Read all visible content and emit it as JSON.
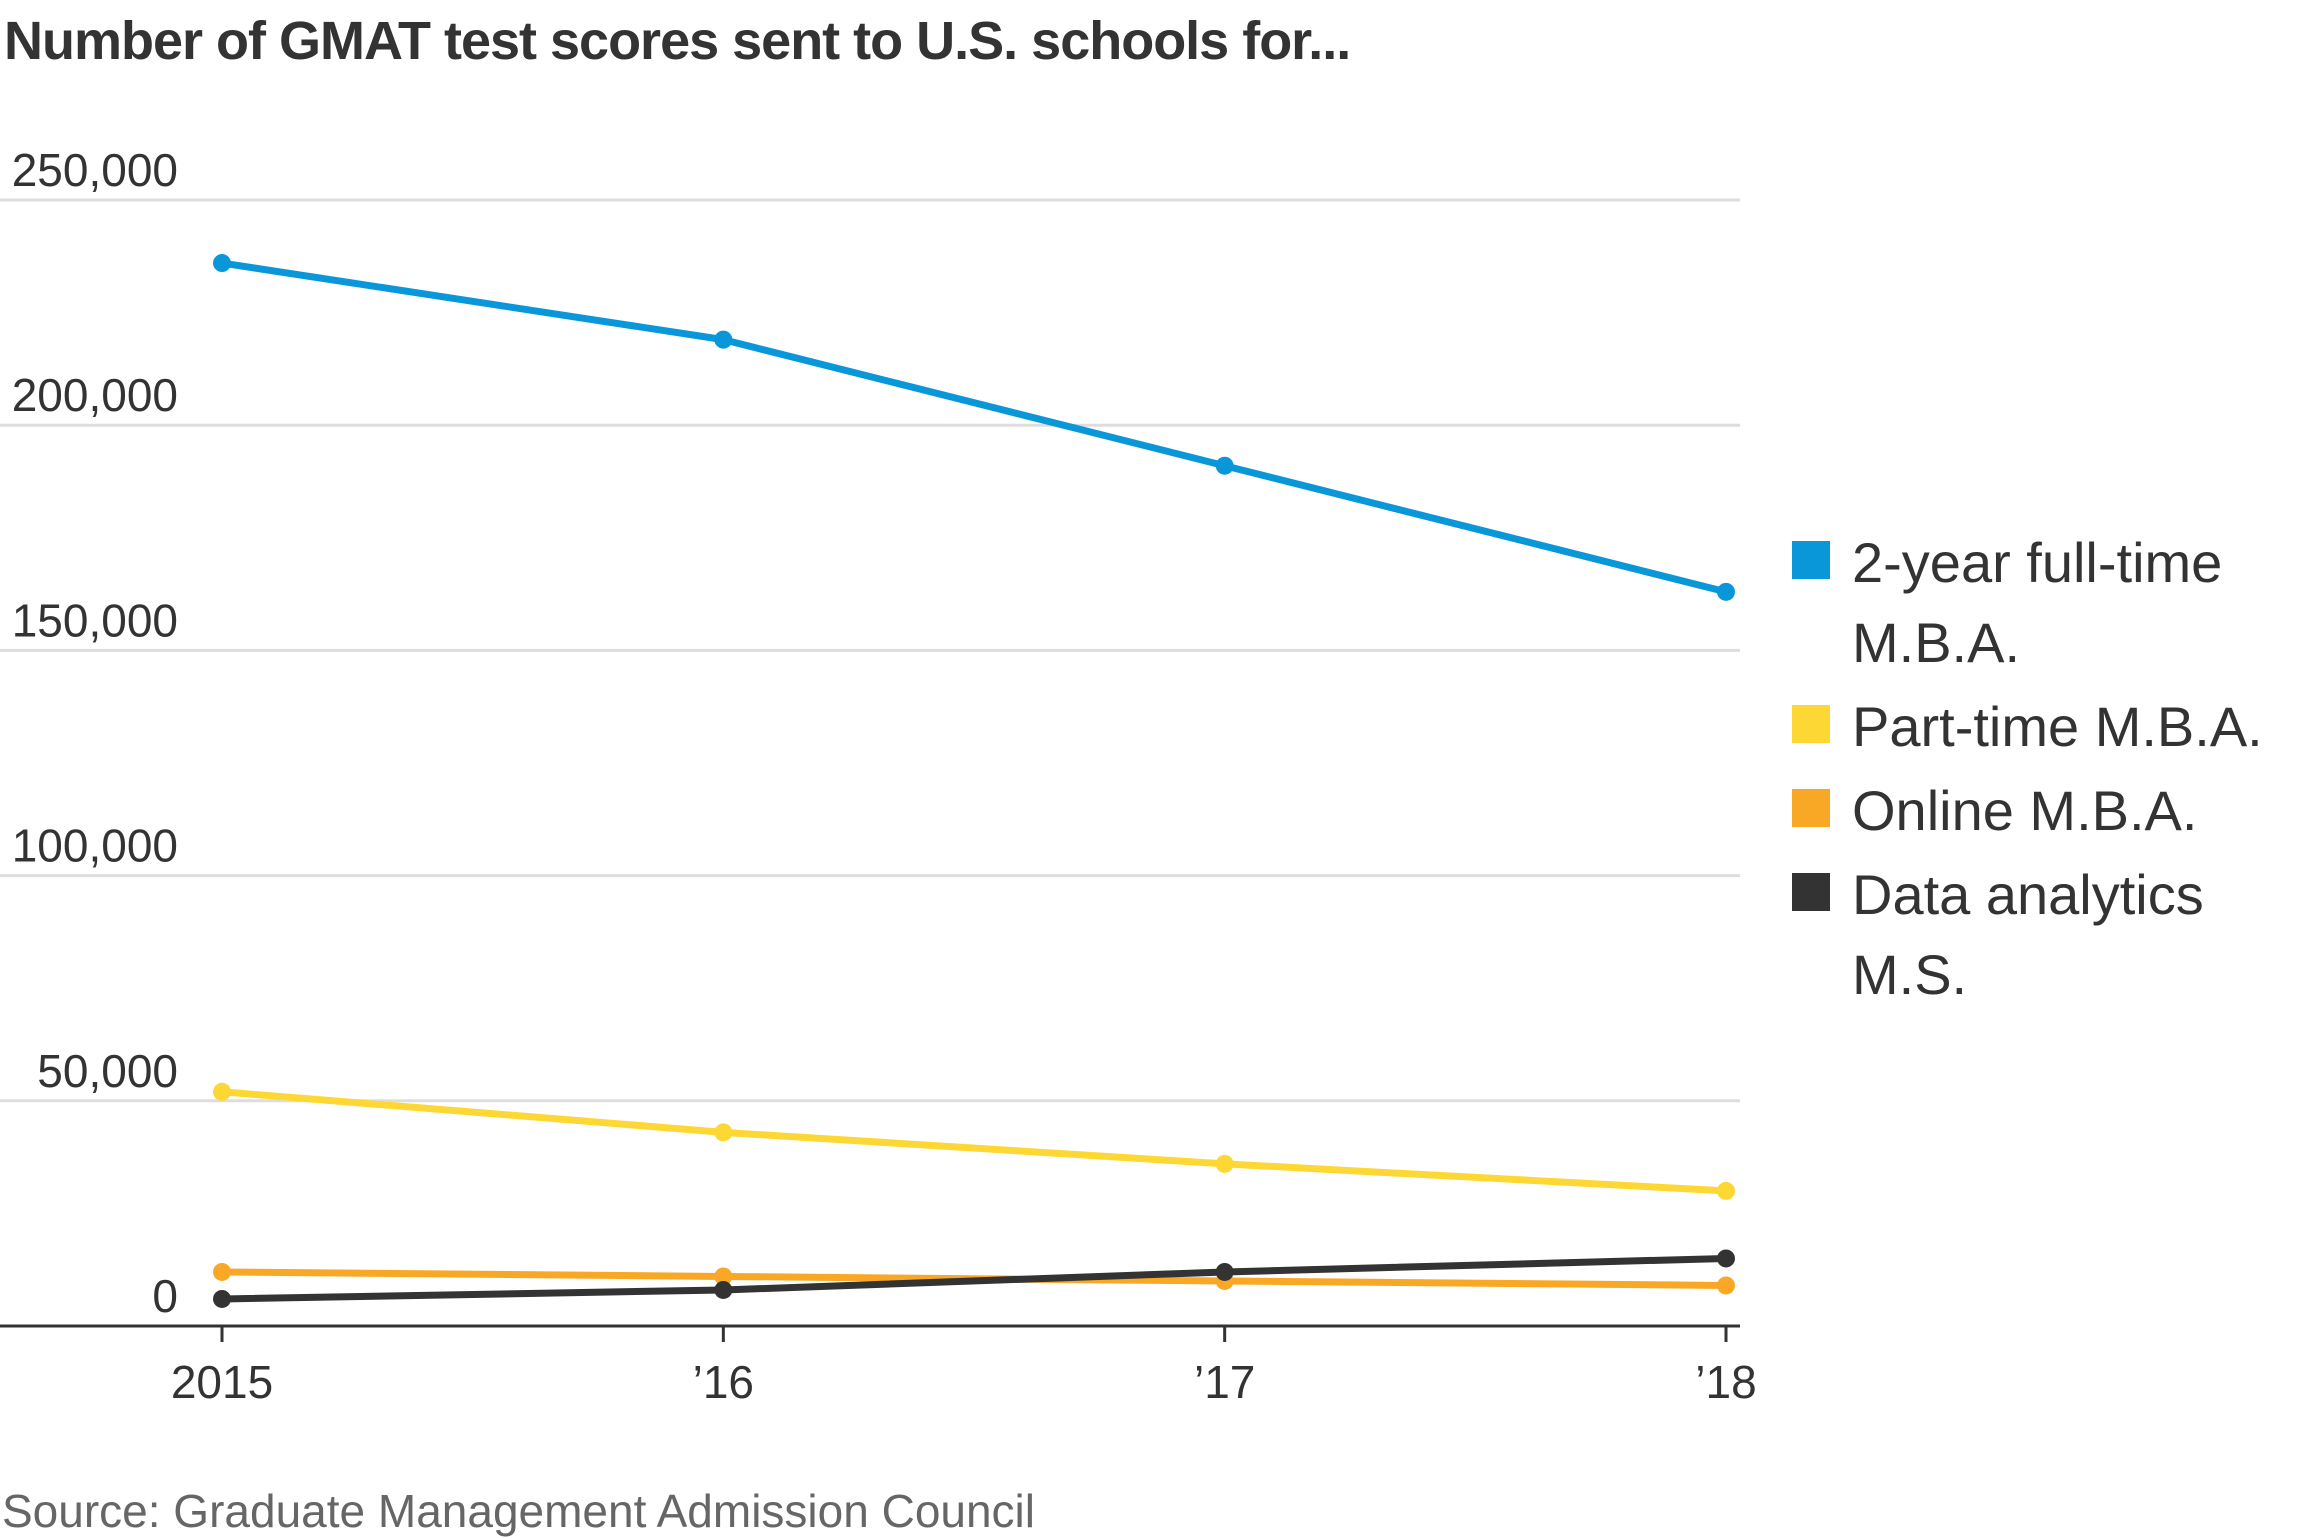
{
  "chart_data": {
    "type": "line",
    "title": "Number of GMAT test scores sent to U.S. schools for...",
    "source": "Source: Graduate Management Admission Council",
    "xlabel": "",
    "ylabel": "",
    "categories": [
      "2015",
      "’16",
      "’17",
      "’18"
    ],
    "ylim": [
      0,
      250000
    ],
    "yticks": [
      {
        "value": 0,
        "label": "0"
      },
      {
        "value": 50000,
        "label": "50,000"
      },
      {
        "value": 100000,
        "label": "100,000"
      },
      {
        "value": 150000,
        "label": "150,000"
      },
      {
        "value": 200000,
        "label": "200,000"
      },
      {
        "value": 250000,
        "label": "250,000"
      }
    ],
    "grid": true,
    "legend_position": "right",
    "series": [
      {
        "name": "2-year full-time M.B.A.",
        "legend_lines": [
          "2-year full-time",
          "M.B.A."
        ],
        "color": "#0a97d9",
        "values": [
          236000,
          219000,
          191000,
          163000
        ]
      },
      {
        "name": "Part-time M.B.A.",
        "legend_lines": [
          "Part-time M.B.A."
        ],
        "color": "#fdd835",
        "values": [
          52000,
          43000,
          36000,
          30000
        ]
      },
      {
        "name": "Online M.B.A.",
        "legend_lines": [
          "Online M.B.A."
        ],
        "color": "#f9a825",
        "values": [
          12000,
          11000,
          10000,
          9000
        ]
      },
      {
        "name": "Data analytics M.S.",
        "legend_lines": [
          "Data analytics",
          "M.S."
        ],
        "color": "#333333",
        "values": [
          6000,
          8000,
          12000,
          15000
        ]
      }
    ]
  }
}
